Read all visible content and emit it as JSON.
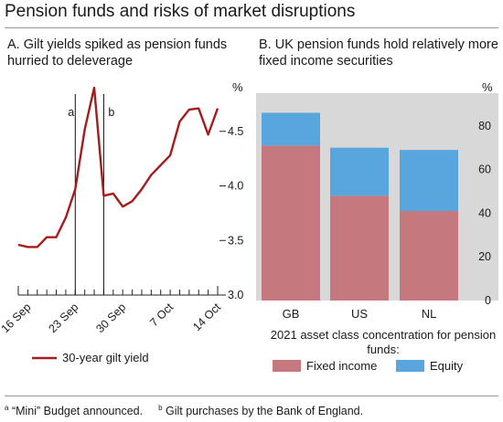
{
  "title": "Pension funds and risks of market disruptions",
  "footnotes": {
    "a_marker": "a",
    "a_text": "“Mini” Budget announced.",
    "b_marker": "b",
    "b_text": "Gilt purchases by the Bank of England."
  },
  "chart_data": [
    {
      "type": "line",
      "title": "A. Gilt yields spiked as pension funds hurried to deleverage",
      "unit": "%",
      "x_tick_labels": [
        "16 Sep",
        "23 Sep",
        "30 Sep",
        "7 Oct",
        "14 Oct"
      ],
      "ylim": [
        3.0,
        4.9
      ],
      "y_ticks": [
        "3.0",
        "3.5",
        "4.0",
        "4.5"
      ],
      "series": [
        {
          "name": "30-year gilt yield",
          "color": "#a61c1c",
          "x": [
            "15 Sep",
            "16 Sep",
            "19 Sep",
            "20 Sep",
            "21 Sep",
            "22 Sep",
            "23 Sep",
            "26 Sep",
            "27 Sep",
            "28 Sep",
            "29 Sep",
            "30 Sep",
            "3 Oct",
            "4 Oct",
            "5 Oct",
            "6 Oct",
            "7 Oct",
            "10 Oct",
            "11 Oct",
            "12 Oct",
            "13 Oct",
            "14 Oct"
          ],
          "values": [
            3.46,
            3.44,
            3.44,
            3.53,
            3.53,
            3.71,
            3.97,
            4.52,
            4.9,
            3.91,
            3.93,
            3.81,
            3.86,
            3.97,
            4.1,
            4.19,
            4.28,
            4.59,
            4.7,
            4.71,
            4.47,
            4.71
          ]
        }
      ],
      "annotations": [
        {
          "label": "a",
          "x": "23 Sep"
        },
        {
          "label": "b",
          "x": "28 Sep"
        }
      ],
      "legend": "bottom"
    },
    {
      "type": "bar",
      "stacked": true,
      "title": "B. UK pension funds hold relatively more fixed income securities",
      "unit": "%",
      "categories": [
        "GB",
        "US",
        "NL"
      ],
      "ylim": [
        0,
        95
      ],
      "y_ticks": [
        "0",
        "20",
        "40",
        "60",
        "80"
      ],
      "series": [
        {
          "name": "Fixed income",
          "color": "#c5797f",
          "values": [
            71,
            48,
            41
          ]
        },
        {
          "name": "Equity",
          "color": "#58a6dd",
          "values": [
            15,
            22,
            28
          ]
        }
      ],
      "legend_title": "2021 asset class concentration for pension funds:",
      "legend": "bottom"
    }
  ]
}
